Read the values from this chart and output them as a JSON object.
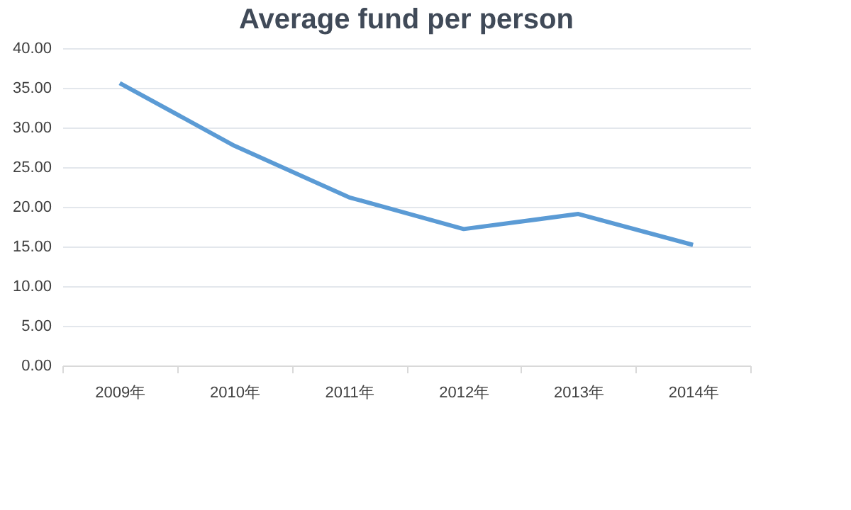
{
  "chart_data": {
    "type": "line",
    "title": "Average fund per person",
    "categories": [
      "2009年",
      "2010年",
      "2011年",
      "2012年",
      "2013年",
      "2014年"
    ],
    "series": [
      {
        "color": "#5b9bd5",
        "values": [
          35.6,
          27.7,
          21.2,
          17.2,
          19.1,
          15.2
        ]
      }
    ],
    "ylim": [
      0,
      40
    ],
    "yticks": [
      {
        "value": 0,
        "label": "0.00"
      },
      {
        "value": 5,
        "label": "5.00"
      },
      {
        "value": 10,
        "label": "10.00"
      },
      {
        "value": 15,
        "label": "15.00"
      },
      {
        "value": 20,
        "label": "20.00"
      },
      {
        "value": 25,
        "label": "25.00"
      },
      {
        "value": 30,
        "label": "30.00"
      },
      {
        "value": 35,
        "label": "35.00"
      },
      {
        "value": 40,
        "label": "40.00"
      }
    ],
    "grid": "y",
    "legend": false,
    "marker": "none",
    "line_style": "solid"
  }
}
